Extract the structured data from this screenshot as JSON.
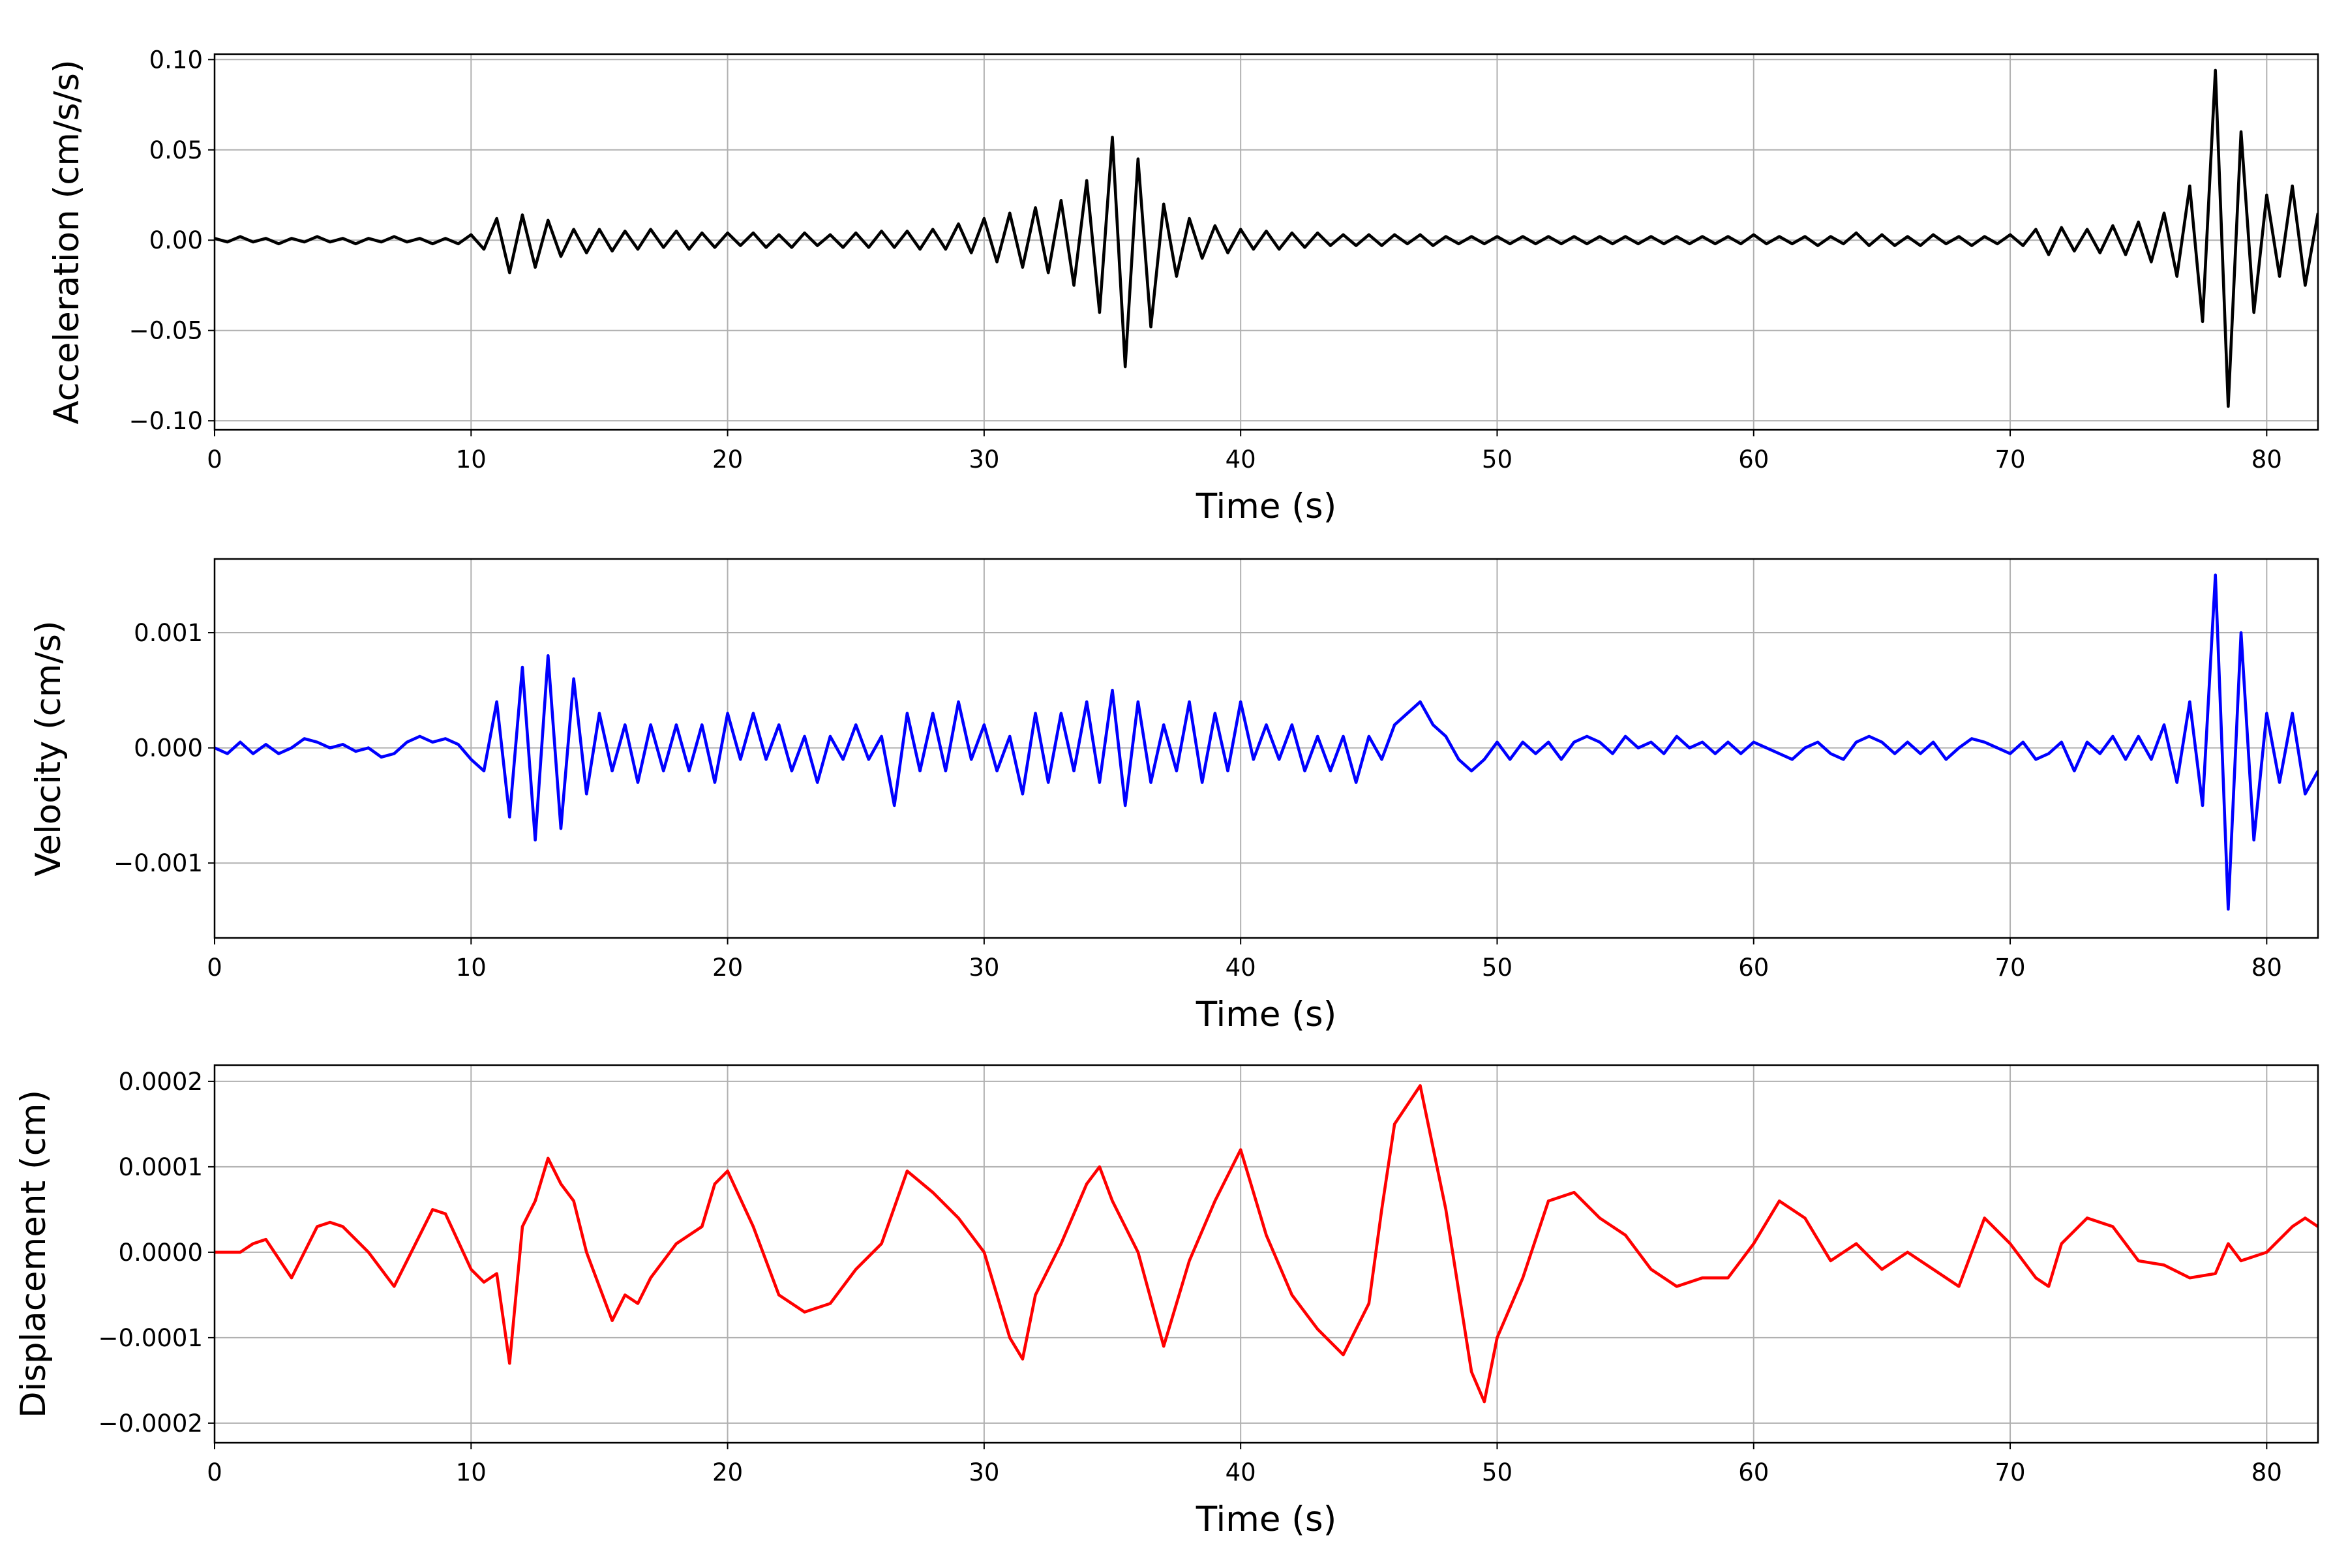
{
  "chart_data": [
    {
      "type": "line",
      "ylabel": "Acceleration (cm/s/s)",
      "xlabel": "Time (s)",
      "color": "#000000",
      "grid": true,
      "xlim": [
        0,
        82
      ],
      "ylim": [
        -0.105,
        0.103
      ],
      "xticks": [
        0,
        10,
        20,
        30,
        40,
        50,
        60,
        70,
        80
      ],
      "yticks": [
        {
          "value": 0.1,
          "label": "0.10"
        },
        {
          "value": 0.05,
          "label": "0.05"
        },
        {
          "value": 0,
          "label": "0.00"
        },
        {
          "value": -0.05,
          "label": "−0.05"
        },
        {
          "value": -0.1,
          "label": "−0.10"
        }
      ],
      "x": [
        0,
        0.5,
        1,
        1.5,
        2,
        2.5,
        3,
        3.5,
        4,
        4.5,
        5,
        5.5,
        6,
        6.5,
        7,
        7.5,
        8,
        8.5,
        9,
        9.5,
        10,
        10.5,
        11,
        11.5,
        12,
        12.5,
        13,
        13.5,
        14,
        14.5,
        15,
        15.5,
        16,
        16.5,
        17,
        17.5,
        18,
        18.5,
        19,
        19.5,
        20,
        20.5,
        21,
        21.5,
        22,
        22.5,
        23,
        23.5,
        24,
        24.5,
        25,
        25.5,
        26,
        26.5,
        27,
        27.5,
        28,
        28.5,
        29,
        29.5,
        30,
        30.5,
        31,
        31.5,
        32,
        32.5,
        33,
        33.5,
        34,
        34.5,
        35,
        35.5,
        36,
        36.5,
        37,
        37.5,
        38,
        38.5,
        39,
        39.5,
        40,
        40.5,
        41,
        41.5,
        42,
        42.5,
        43,
        43.5,
        44,
        44.5,
        45,
        45.5,
        46,
        46.5,
        47,
        47.5,
        48,
        48.5,
        49,
        49.5,
        50,
        50.5,
        51,
        51.5,
        52,
        52.5,
        53,
        53.5,
        54,
        54.5,
        55,
        55.5,
        56,
        56.5,
        57,
        57.5,
        58,
        58.5,
        59,
        59.5,
        60,
        60.5,
        61,
        61.5,
        62,
        62.5,
        63,
        63.5,
        64,
        64.5,
        65,
        65.5,
        66,
        66.5,
        67,
        67.5,
        68,
        68.5,
        69,
        69.5,
        70,
        70.5,
        71,
        71.5,
        72,
        72.5,
        73,
        73.5,
        74,
        74.5,
        75,
        75.5,
        76,
        76.5,
        77,
        77.5,
        78,
        78.5,
        79,
        79.5,
        80,
        80.5,
        81,
        81.5,
        82
      ],
      "values": [
        0.001,
        -0.001,
        0.002,
        -0.001,
        0.001,
        -0.002,
        0.001,
        -0.001,
        0.002,
        -0.001,
        0.001,
        -0.002,
        0.001,
        -0.001,
        0.002,
        -0.001,
        0.001,
        -0.002,
        0.001,
        -0.002,
        0.003,
        -0.005,
        0.012,
        -0.018,
        0.014,
        -0.015,
        0.011,
        -0.009,
        0.006,
        -0.007,
        0.006,
        -0.006,
        0.005,
        -0.005,
        0.006,
        -0.004,
        0.005,
        -0.005,
        0.004,
        -0.004,
        0.004,
        -0.003,
        0.004,
        -0.004,
        0.003,
        -0.004,
        0.004,
        -0.003,
        0.003,
        -0.004,
        0.004,
        -0.004,
        0.005,
        -0.004,
        0.005,
        -0.005,
        0.006,
        -0.005,
        0.009,
        -0.007,
        0.012,
        -0.012,
        0.015,
        -0.015,
        0.018,
        -0.018,
        0.022,
        -0.025,
        0.033,
        -0.04,
        0.057,
        -0.07,
        0.045,
        -0.048,
        0.02,
        -0.02,
        0.012,
        -0.01,
        0.008,
        -0.007,
        0.006,
        -0.005,
        0.005,
        -0.005,
        0.004,
        -0.004,
        0.004,
        -0.003,
        0.003,
        -0.003,
        0.003,
        -0.003,
        0.003,
        -0.002,
        0.003,
        -0.003,
        0.002,
        -0.002,
        0.002,
        -0.002,
        0.002,
        -0.002,
        0.002,
        -0.002,
        0.002,
        -0.002,
        0.002,
        -0.002,
        0.002,
        -0.002,
        0.002,
        -0.002,
        0.002,
        -0.002,
        0.002,
        -0.002,
        0.002,
        -0.002,
        0.002,
        -0.002,
        0.003,
        -0.002,
        0.002,
        -0.002,
        0.002,
        -0.003,
        0.002,
        -0.002,
        0.004,
        -0.003,
        0.003,
        -0.003,
        0.002,
        -0.003,
        0.003,
        -0.002,
        0.002,
        -0.003,
        0.002,
        -0.002,
        0.003,
        -0.003,
        0.006,
        -0.008,
        0.007,
        -0.006,
        0.006,
        -0.007,
        0.008,
        -0.008,
        0.01,
        -0.012,
        0.015,
        -0.02,
        0.03,
        -0.045,
        0.094,
        -0.092,
        0.06,
        -0.04,
        0.025,
        -0.02,
        0.03,
        -0.025,
        0.015
      ]
    },
    {
      "type": "line",
      "ylabel": "Velocity (cm/s)",
      "xlabel": "Time (s)",
      "color": "#0000ff",
      "grid": true,
      "xlim": [
        0,
        82
      ],
      "ylim": [
        -0.00165,
        0.00164
      ],
      "xticks": [
        0,
        10,
        20,
        30,
        40,
        50,
        60,
        70,
        80
      ],
      "yticks": [
        0.001,
        {
          "value": 0,
          "label": "0.000"
        },
        {
          "value": -0.001,
          "label": "−0.001"
        }
      ],
      "x": [
        0,
        0.5,
        1,
        1.5,
        2,
        2.5,
        3,
        3.5,
        4,
        4.5,
        5,
        5.5,
        6,
        6.5,
        7,
        7.5,
        8,
        8.5,
        9,
        9.5,
        10,
        10.5,
        11,
        11.5,
        12,
        12.5,
        13,
        13.5,
        14,
        14.5,
        15,
        15.5,
        16,
        16.5,
        17,
        17.5,
        18,
        18.5,
        19,
        19.5,
        20,
        20.5,
        21,
        21.5,
        22,
        22.5,
        23,
        23.5,
        24,
        24.5,
        25,
        25.5,
        26,
        26.5,
        27,
        27.5,
        28,
        28.5,
        29,
        29.5,
        30,
        30.5,
        31,
        31.5,
        32,
        32.5,
        33,
        33.5,
        34,
        34.5,
        35,
        35.5,
        36,
        36.5,
        37,
        37.5,
        38,
        38.5,
        39,
        39.5,
        40,
        40.5,
        41,
        41.5,
        42,
        42.5,
        43,
        43.5,
        44,
        44.5,
        45,
        45.5,
        46,
        46.5,
        47,
        47.5,
        48,
        48.5,
        49,
        49.5,
        50,
        50.5,
        51,
        51.5,
        52,
        52.5,
        53,
        53.5,
        54,
        54.5,
        55,
        55.5,
        56,
        56.5,
        57,
        57.5,
        58,
        58.5,
        59,
        59.5,
        60,
        60.5,
        61,
        61.5,
        62,
        62.5,
        63,
        63.5,
        64,
        64.5,
        65,
        65.5,
        66,
        66.5,
        67,
        67.5,
        68,
        68.5,
        69,
        69.5,
        70,
        70.5,
        71,
        71.5,
        72,
        72.5,
        73,
        73.5,
        74,
        74.5,
        75,
        75.5,
        76,
        76.5,
        77,
        77.5,
        78,
        78.5,
        79,
        79.5,
        80,
        80.5,
        81,
        81.5,
        82
      ],
      "values": [
        0,
        -5e-05,
        5e-05,
        -5e-05,
        3e-05,
        -5e-05,
        0,
        8e-05,
        5e-05,
        0,
        3e-05,
        -3e-05,
        0,
        -8e-05,
        -5e-05,
        5e-05,
        0.0001,
        5e-05,
        8e-05,
        3e-05,
        -0.0001,
        -0.0002,
        0.0004,
        -0.0006,
        0.0007,
        -0.0008,
        0.0008,
        -0.0007,
        0.0006,
        -0.0004,
        0.0003,
        -0.0002,
        0.0002,
        -0.0003,
        0.0002,
        -0.0002,
        0.0002,
        -0.0002,
        0.0002,
        -0.0003,
        0.0003,
        -0.0001,
        0.0003,
        -0.0001,
        0.0002,
        -0.0002,
        0.0001,
        -0.0003,
        0.0001,
        -0.0001,
        0.0002,
        -0.0001,
        0.0001,
        -0.0005,
        0.0003,
        -0.0002,
        0.0003,
        -0.0002,
        0.0004,
        -0.0001,
        0.0002,
        -0.0002,
        0.0001,
        -0.0004,
        0.0003,
        -0.0003,
        0.0003,
        -0.0002,
        0.0004,
        -0.0003,
        0.0005,
        -0.0005,
        0.0004,
        -0.0003,
        0.0002,
        -0.0002,
        0.0004,
        -0.0003,
        0.0003,
        -0.0002,
        0.0004,
        -0.0001,
        0.0002,
        -0.0001,
        0.0002,
        -0.0002,
        0.0001,
        -0.0002,
        0.0001,
        -0.0003,
        0.0001,
        -0.0001,
        0.0002,
        0.0003,
        0.0004,
        0.0002,
        0.0001,
        -0.0001,
        -0.0002,
        -0.0001,
        5e-05,
        -0.0001,
        5e-05,
        -5e-05,
        5e-05,
        -0.0001,
        5e-05,
        0.0001,
        5e-05,
        -5e-05,
        0.0001,
        0,
        5e-05,
        -5e-05,
        0.0001,
        0,
        5e-05,
        -5e-05,
        5e-05,
        -5e-05,
        5e-05,
        0,
        -5e-05,
        -0.0001,
        0,
        5e-05,
        -5e-05,
        -0.0001,
        5e-05,
        0.0001,
        5e-05,
        -5e-05,
        5e-05,
        -5e-05,
        5e-05,
        -0.0001,
        0,
        8e-05,
        5e-05,
        0,
        -5e-05,
        5e-05,
        -0.0001,
        -5e-05,
        5e-05,
        -0.0002,
        5e-05,
        -5e-05,
        0.0001,
        -0.0001,
        0.0001,
        -0.0001,
        0.0002,
        -0.0003,
        0.0004,
        -0.0005,
        0.0015,
        -0.0014,
        0.001,
        -0.0008,
        0.0003,
        -0.0003,
        0.0003,
        -0.0004,
        -0.0002
      ]
    },
    {
      "type": "line",
      "ylabel": "Displacement (cm)",
      "xlabel": "Time (s)",
      "color": "#ff0000",
      "grid": true,
      "xlim": [
        0,
        82
      ],
      "ylim": [
        -0.000223,
        0.000219
      ],
      "xticks": [
        0,
        10,
        20,
        30,
        40,
        50,
        60,
        70,
        80
      ],
      "yticks": [
        0.0002,
        0.0001,
        {
          "value": 0,
          "label": "0.0000"
        },
        {
          "value": -0.0001,
          "label": "−0.0001"
        },
        {
          "value": -0.0002,
          "label": "−0.0002"
        }
      ],
      "x": [
        0,
        1,
        1.5,
        2,
        3,
        4,
        4.5,
        5,
        6,
        7,
        8,
        8.5,
        9,
        10,
        10.5,
        11,
        11.5,
        12,
        12.5,
        13,
        13.5,
        14,
        14.5,
        15,
        15.5,
        16,
        16.5,
        17,
        18,
        19,
        19.5,
        20,
        21,
        22,
        23,
        24,
        25,
        26,
        27,
        28,
        29,
        30,
        31,
        31.5,
        32,
        33,
        34,
        34.5,
        35,
        36,
        37,
        38,
        39,
        40,
        41,
        42,
        43,
        44,
        45,
        45.5,
        46,
        47,
        48,
        49,
        49.5,
        50,
        51,
        52,
        53,
        54,
        55,
        56,
        57,
        58,
        59,
        60,
        61,
        62,
        63,
        64,
        65,
        66,
        67,
        68,
        69,
        70,
        71,
        71.5,
        72,
        73,
        74,
        75,
        76,
        77,
        78,
        78.5,
        79,
        80,
        81,
        81.5,
        82
      ],
      "values": [
        0,
        0,
        1e-05,
        1.5e-05,
        -3e-05,
        3e-05,
        3.5e-05,
        3e-05,
        0,
        -4e-05,
        2e-05,
        5e-05,
        4.5e-05,
        -2e-05,
        -3.5e-05,
        -2.5e-05,
        -0.00013,
        3e-05,
        6e-05,
        0.00011,
        8e-05,
        6e-05,
        0,
        -4e-05,
        -8e-05,
        -5e-05,
        -6e-05,
        -3e-05,
        1e-05,
        3e-05,
        8e-05,
        9.5e-05,
        3e-05,
        -5e-05,
        -7e-05,
        -6e-05,
        -2e-05,
        1e-05,
        9.5e-05,
        7e-05,
        4e-05,
        0,
        -0.0001,
        -0.000125,
        -5e-05,
        1e-05,
        8e-05,
        0.0001,
        6e-05,
        0,
        -0.00011,
        -1e-05,
        6e-05,
        0.00012,
        2e-05,
        -5e-05,
        -9e-05,
        -0.00012,
        -6e-05,
        5e-05,
        0.00015,
        0.000195,
        5e-05,
        -0.00014,
        -0.000175,
        -0.0001,
        -3e-05,
        6e-05,
        7e-05,
        4e-05,
        2e-05,
        -2e-05,
        -4e-05,
        -3e-05,
        -3e-05,
        1e-05,
        6e-05,
        4e-05,
        -1e-05,
        1e-05,
        -2e-05,
        0,
        -2e-05,
        -4e-05,
        4e-05,
        1e-05,
        -3e-05,
        -4e-05,
        1e-05,
        4e-05,
        3e-05,
        -1e-05,
        -1.5e-05,
        -3e-05,
        -2.5e-05,
        1e-05,
        -1e-05,
        0,
        3e-05,
        4e-05,
        3e-05
      ]
    }
  ]
}
